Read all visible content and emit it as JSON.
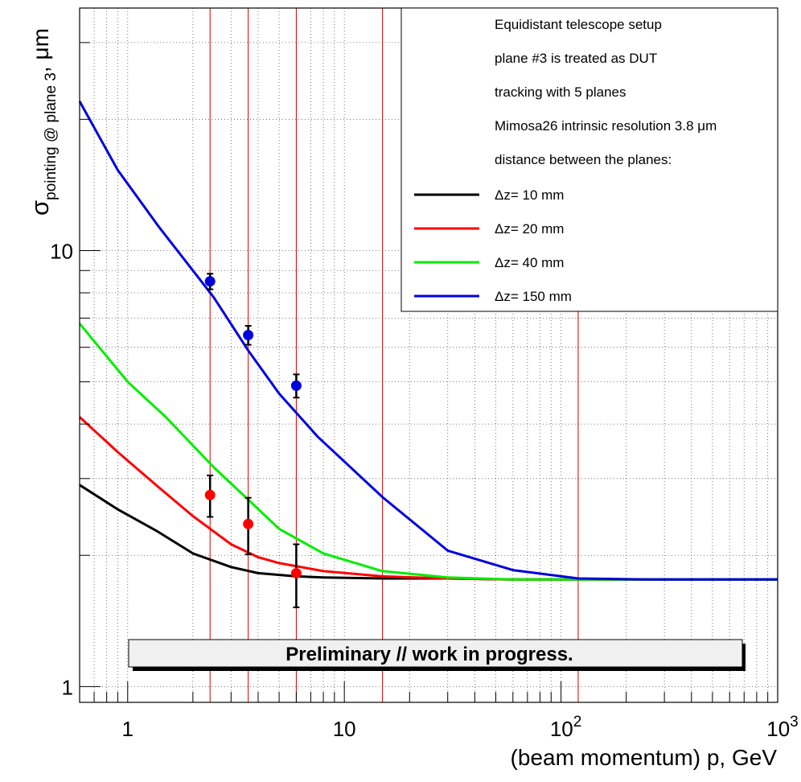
{
  "chart_data": {
    "type": "line",
    "xlabel": "(beam momentum) p, GeV",
    "ylabel_main": "σ",
    "ylabel_sub": "pointing @ plane 3",
    "ylabel_unit": ", μm",
    "xscale": "log",
    "yscale": "log",
    "xlim": [
      0.6,
      1000
    ],
    "ylim": [
      0.92,
      36
    ],
    "grid": true,
    "x_tick_labels": [
      {
        "value": 1,
        "base": "1",
        "exp": ""
      },
      {
        "value": 10,
        "base": "10",
        "exp": ""
      },
      {
        "value": 100,
        "base": "10",
        "exp": "2"
      },
      {
        "value": 1000,
        "base": "10",
        "exp": "3"
      }
    ],
    "y_tick_labels": [
      {
        "value": 1,
        "label": "1"
      },
      {
        "value": 10,
        "label": "10"
      }
    ],
    "reference_lines_x": [
      2.4,
      3.6,
      6.0,
      15.0,
      120.0
    ],
    "legend": {
      "placement": "top-right",
      "header": [
        "Equidistant telescope setup",
        "plane #3 is treated as DUT",
        "tracking with 5 planes",
        "Mimosa26 intrinsic resolution 3.8 μm",
        "distance between the planes:"
      ]
    },
    "series": [
      {
        "name": "Δz=  10 mm",
        "color": "#000000",
        "x": [
          0.6,
          0.9,
          1.35,
          2.0,
          3.0,
          4.0,
          6.0,
          8.0,
          15.0,
          30.0,
          60.0,
          120.0,
          1000.0
        ],
        "y": [
          2.9,
          2.55,
          2.28,
          2.02,
          1.88,
          1.82,
          1.79,
          1.78,
          1.77,
          1.77,
          1.76,
          1.76,
          1.76
        ]
      },
      {
        "name": "Δz=  20 mm",
        "color": "#ff0000",
        "x": [
          0.6,
          0.9,
          1.35,
          2.0,
          3.0,
          4.0,
          5.0,
          8.0,
          15.0,
          30.0,
          60.0,
          120.0,
          1000.0
        ],
        "y": [
          4.15,
          3.45,
          2.9,
          2.46,
          2.12,
          1.98,
          1.92,
          1.84,
          1.79,
          1.77,
          1.76,
          1.76,
          1.76
        ]
      },
      {
        "name": "Δz=  40 mm",
        "color": "#00ee00",
        "x": [
          0.6,
          1.0,
          1.5,
          2.5,
          3.5,
          5.0,
          8.0,
          15.0,
          30.0,
          60.0,
          120.0,
          1000.0
        ],
        "y": [
          6.8,
          5.0,
          4.15,
          3.18,
          2.72,
          2.3,
          2.02,
          1.84,
          1.78,
          1.76,
          1.76,
          1.76
        ]
      },
      {
        "name": "Δz= 150 mm",
        "color": "#0000dd",
        "x": [
          0.6,
          0.9,
          1.4,
          2.0,
          2.5,
          3.6,
          5.0,
          7.5,
          15.0,
          30.0,
          60.0,
          120.0,
          250.0,
          1000.0
        ],
        "y": [
          22.0,
          15.3,
          11.3,
          9.0,
          7.8,
          5.9,
          4.7,
          3.75,
          2.72,
          2.05,
          1.85,
          1.77,
          1.76,
          1.76
        ]
      }
    ],
    "markers": [
      {
        "series": "Δz= 150 mm",
        "color": "#0000dd",
        "x": [
          2.4,
          3.6,
          6.0
        ],
        "y": [
          8.5,
          6.4,
          4.9
        ],
        "err": [
          0.35,
          0.32,
          0.3
        ]
      },
      {
        "series": "Δz=  20 mm",
        "color": "#ff0000",
        "x": [
          2.4,
          3.6,
          6.0
        ],
        "y": [
          2.75,
          2.36,
          1.82
        ],
        "err": [
          0.3,
          0.35,
          0.3
        ]
      }
    ],
    "annotation": "Preliminary // work in progress."
  }
}
